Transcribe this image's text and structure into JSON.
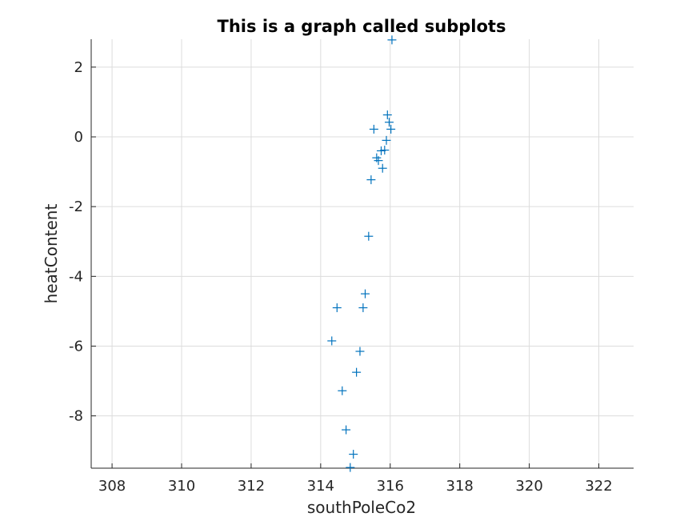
{
  "chart_data": {
    "type": "scatter",
    "title": "This is a graph called subplots",
    "xlabel": "southPoleCo2",
    "ylabel": "heatContent",
    "xlim": [
      307.4,
      323.0
    ],
    "ylim": [
      -9.5,
      2.8
    ],
    "xticks": [
      308,
      310,
      312,
      314,
      316,
      318,
      320,
      322
    ],
    "yticks": [
      2,
      0,
      -2,
      -4,
      -6,
      -8
    ],
    "xtick_labels": [
      "308",
      "310",
      "312",
      "314",
      "316",
      "318",
      "320",
      "322"
    ],
    "ytick_labels": [
      "2",
      "0",
      "-2",
      "-4",
      "-6",
      "-8"
    ],
    "grid": true,
    "marker": "+",
    "marker_color": "#0072BD",
    "points": [
      {
        "x": 316.05,
        "y": 2.78
      },
      {
        "x": 315.92,
        "y": 0.63
      },
      {
        "x": 315.97,
        "y": 0.42
      },
      {
        "x": 316.02,
        "y": 0.22
      },
      {
        "x": 315.53,
        "y": 0.22
      },
      {
        "x": 315.89,
        "y": -0.1
      },
      {
        "x": 315.84,
        "y": -0.38
      },
      {
        "x": 315.74,
        "y": -0.4
      },
      {
        "x": 315.61,
        "y": -0.6
      },
      {
        "x": 315.66,
        "y": -0.68
      },
      {
        "x": 315.78,
        "y": -0.9
      },
      {
        "x": 315.45,
        "y": -1.23
      },
      {
        "x": 315.38,
        "y": -2.85
      },
      {
        "x": 315.28,
        "y": -4.5
      },
      {
        "x": 314.47,
        "y": -4.9
      },
      {
        "x": 315.22,
        "y": -4.9
      },
      {
        "x": 314.32,
        "y": -5.85
      },
      {
        "x": 315.13,
        "y": -6.15
      },
      {
        "x": 315.03,
        "y": -6.75
      },
      {
        "x": 314.62,
        "y": -7.28
      },
      {
        "x": 314.73,
        "y": -8.4
      },
      {
        "x": 314.94,
        "y": -9.1
      },
      {
        "x": 314.85,
        "y": -9.48
      }
    ]
  }
}
